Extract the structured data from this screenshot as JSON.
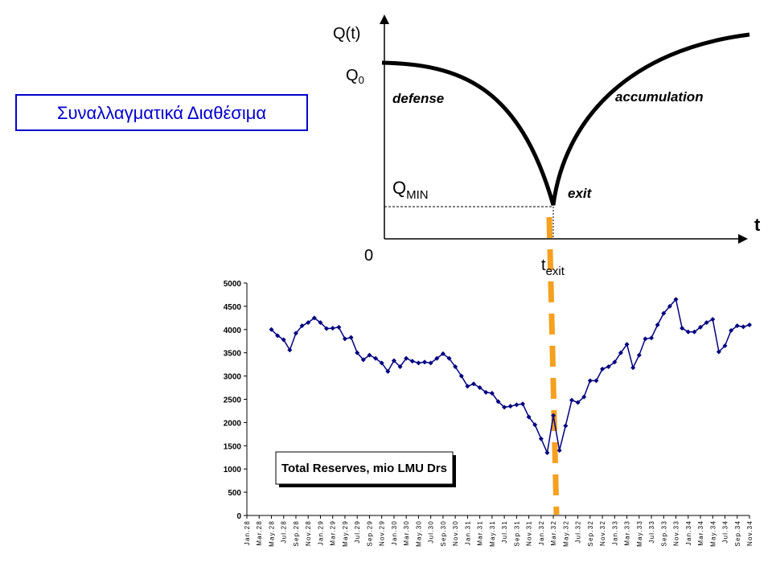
{
  "title_box": "Συναλλαγματικά Διαθέσιμα",
  "diagram": {
    "y_axis_label": "Q(t)",
    "q0": {
      "main": "Q",
      "sub": "0"
    },
    "phase_left": "defense",
    "phase_right": "accumulation",
    "qmin": {
      "main": "Q",
      "sub": "MIN"
    },
    "exit_label": "exit",
    "x_axis_label": "t",
    "origin_label": "0",
    "texit": {
      "main": "t",
      "sub": "exit"
    }
  },
  "chart_data": {
    "type": "line",
    "categories": [
      "Jan.28",
      null,
      "Mar.28",
      null,
      "May.28",
      null,
      "Jul.28",
      null,
      "Sep.28",
      null,
      "Nov.28",
      null,
      "Jan.29",
      null,
      "Mar.29",
      null,
      "May.29",
      null,
      "Jul.29",
      null,
      "Sep.29",
      null,
      "Nov.29",
      null,
      "Jan.30",
      null,
      "Mar.30",
      null,
      "May.30",
      null,
      "Jul.30",
      null,
      "Sep.30",
      null,
      "Nov.30",
      null,
      "Jan.31",
      null,
      "Mar.31",
      null,
      "May.31",
      null,
      "Jul.31",
      null,
      "Sep.31",
      null,
      "Nov.31",
      null,
      "Jan.32",
      null,
      "Mar.32",
      null,
      "May.32",
      null,
      "Jul.32",
      null,
      "Sep.32",
      null,
      "Nov.32",
      null,
      "Jan.33",
      null,
      "Mar.33",
      null,
      "May.33",
      null,
      "Jul.33",
      null,
      "Sep.33",
      null,
      "Nov.33",
      null,
      "Jan.34",
      null,
      "Mar.34",
      null,
      "May.34",
      null,
      "Jul.34",
      null,
      "Sep.34",
      null,
      "Nov.34"
    ],
    "series": [
      {
        "name": "Total Reserves, mio LMU Drs",
        "color": "#000080",
        "values": [
          null,
          null,
          null,
          null,
          4000,
          3870,
          3780,
          3560,
          3920,
          4080,
          4150,
          4250,
          4150,
          4020,
          4030,
          4050,
          3800,
          3830,
          3500,
          3350,
          3450,
          3380,
          3280,
          3100,
          3330,
          3200,
          3380,
          3320,
          3280,
          3300,
          3280,
          3380,
          3480,
          3380,
          3200,
          3000,
          2780,
          2830,
          2750,
          2650,
          2630,
          2450,
          2330,
          2350,
          2380,
          2400,
          2120,
          1950,
          1650,
          1350,
          2150,
          1400,
          1930,
          2480,
          2430,
          2550,
          2900,
          2900,
          3150,
          3200,
          3300,
          3500,
          3680,
          3180,
          3450,
          3800,
          3820,
          4100,
          4350,
          4500,
          4650,
          4030,
          3950,
          3950,
          4050,
          4150,
          4220,
          3520,
          3650,
          3980,
          4080,
          4060,
          4100
        ]
      }
    ],
    "ylim": [
      0,
      5000
    ],
    "yticks": [
      0,
      500,
      1000,
      1500,
      2000,
      2500,
      3000,
      3500,
      4000,
      4500,
      5000
    ],
    "grid": false
  }
}
